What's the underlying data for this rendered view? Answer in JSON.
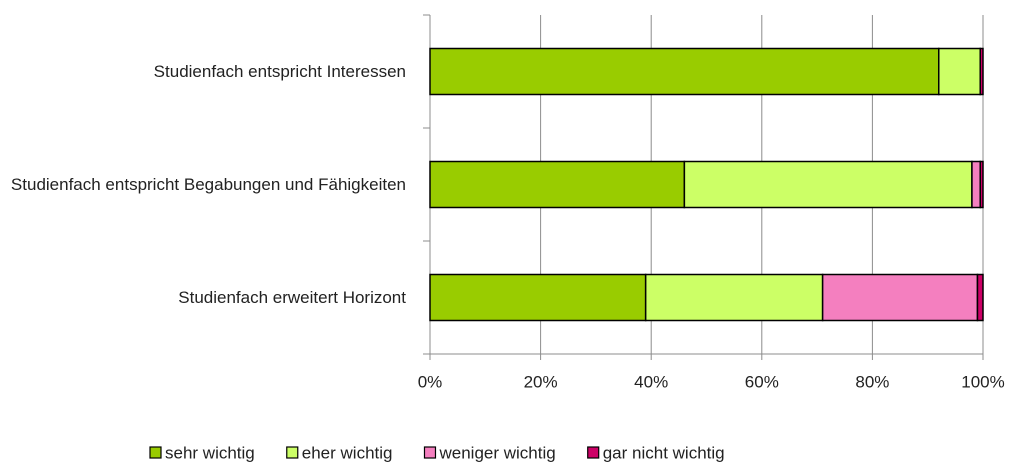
{
  "chart_data": {
    "type": "stacked_barh",
    "categories": [
      "Studienfach entspricht Interessen",
      "Studienfach entspricht Begabungen und Fähigkeiten",
      "Studienfach erweitert Horizont"
    ],
    "series": [
      {
        "name": "sehr wichtig",
        "color": "#99cc00",
        "values": [
          92,
          46,
          39
        ]
      },
      {
        "name": "eher wichtig",
        "color": "#ccff66",
        "values": [
          7.5,
          52,
          32
        ]
      },
      {
        "name": "weniger wichtig",
        "color": "#f47fbf",
        "values": [
          0,
          1.5,
          28
        ]
      },
      {
        "name": "gar nicht wichtig",
        "color": "#cc0066",
        "values": [
          0.5,
          0.5,
          1
        ]
      }
    ],
    "xlim": [
      0,
      100
    ],
    "xticks": [
      {
        "value": 0,
        "label": "0%"
      },
      {
        "value": 20,
        "label": "20%"
      },
      {
        "value": 40,
        "label": "40%"
      },
      {
        "value": 60,
        "label": "60%"
      },
      {
        "value": 80,
        "label": "80%"
      },
      {
        "value": 100,
        "label": "100%"
      }
    ],
    "grid": true,
    "legend": "bottom"
  }
}
